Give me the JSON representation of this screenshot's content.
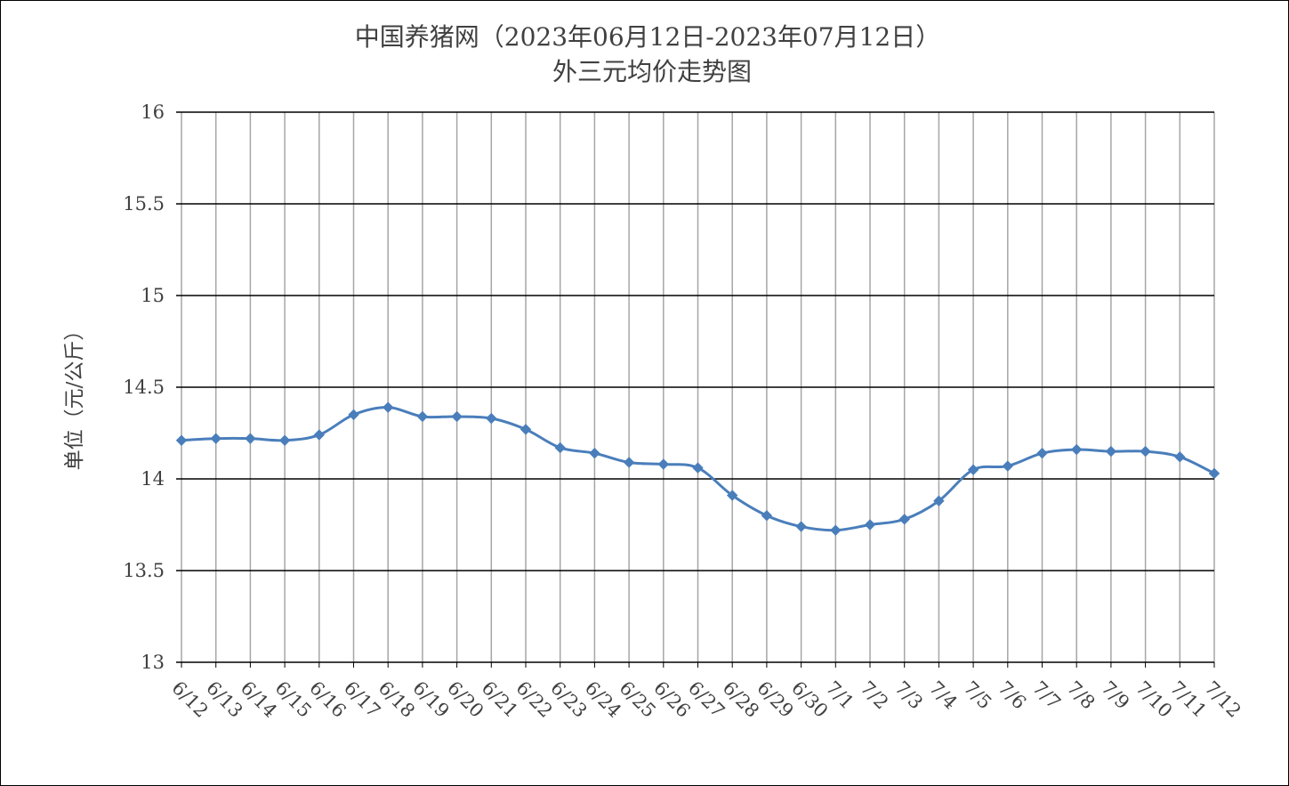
{
  "chart_data": {
    "type": "line",
    "title": "中国养猪网（2023年06月12日-2023年07月12日）",
    "subtitle": "外三元均价走势图",
    "xlabel": "",
    "ylabel": "单位（元/公斤）",
    "ylim": [
      13,
      16
    ],
    "yticks": [
      "13",
      "13.5",
      "14",
      "14.5",
      "15",
      "15.5",
      "16"
    ],
    "grid": true,
    "legend": "none",
    "categories": [
      "6/12",
      "6/13",
      "6/14",
      "6/15",
      "6/16",
      "6/17",
      "6/18",
      "6/19",
      "6/20",
      "6/21",
      "6/22",
      "6/23",
      "6/24",
      "6/25",
      "6/26",
      "6/27",
      "6/28",
      "6/29",
      "6/30",
      "7/1",
      "7/2",
      "7/3",
      "7/4",
      "7/5",
      "7/6",
      "7/7",
      "7/8",
      "7/9",
      "7/10",
      "7/11",
      "7/12"
    ],
    "series": [
      {
        "color": "#4a7ebb",
        "values": [
          14.21,
          14.22,
          14.22,
          14.21,
          14.24,
          14.35,
          14.39,
          14.34,
          14.34,
          14.33,
          14.27,
          14.17,
          14.14,
          14.09,
          14.08,
          14.06,
          13.91,
          13.8,
          13.74,
          13.72,
          13.75,
          13.78,
          13.88,
          14.05,
          14.07,
          14.14,
          14.16,
          14.15,
          14.15,
          14.12,
          14.03
        ]
      }
    ]
  }
}
